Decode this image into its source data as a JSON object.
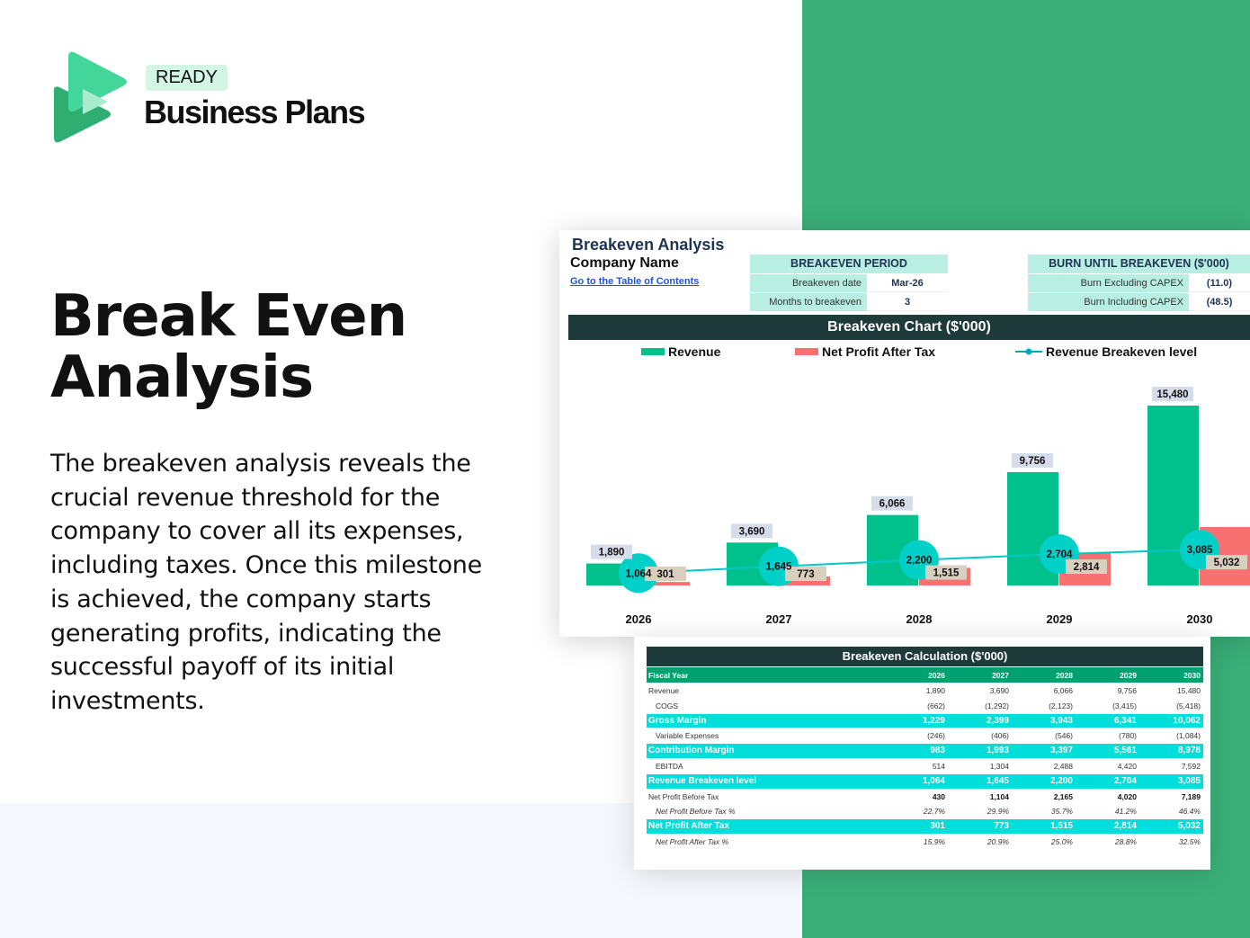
{
  "brand": {
    "badge": "READY",
    "name": "Business Plans"
  },
  "hero": {
    "title_line1": "Break Even",
    "title_line2": "Analysis",
    "description": "The breakeven analysis reveals the crucial revenue threshold for the company to cover all its expenses, including taxes. Once this milestone is achieved, the company starts generating profits, indicating the successful payoff of its initial investments."
  },
  "sheet": {
    "title": "Breakeven Analysis",
    "company": "Company Name",
    "toc_link": "Go to the Table of Contents",
    "period": {
      "header": "BREAKEVEN PERIOD",
      "rows": [
        {
          "label": "Breakeven date",
          "value": "Mar-26"
        },
        {
          "label": "Months to breakeven",
          "value": "3"
        }
      ]
    },
    "burn": {
      "header": "BURN UNTIL BREAKEVEN ($'000)",
      "rows": [
        {
          "label": "Burn Excluding CAPEX",
          "value": "(11.0)"
        },
        {
          "label": "Burn Including CAPEX",
          "value": "(48.5)"
        }
      ]
    }
  },
  "chart_data": {
    "type": "bar",
    "title": "Breakeven Chart ($'000)",
    "categories": [
      "2026",
      "2027",
      "2028",
      "2029",
      "2030"
    ],
    "series": [
      {
        "name": "Revenue",
        "type": "bar",
        "color": "#00c08b",
        "values": [
          1890,
          3690,
          6066,
          9756,
          15480
        ],
        "labels": [
          "1,890",
          "3,690",
          "6,066",
          "9,756",
          "15,480"
        ]
      },
      {
        "name": "Net Profit After Tax",
        "type": "bar",
        "color": "#f87171",
        "values": [
          301,
          773,
          1515,
          2814,
          5032
        ],
        "labels": [
          "301",
          "773",
          "1,515",
          "2,814",
          "5,032"
        ]
      },
      {
        "name": "Revenue Breakeven level",
        "type": "line",
        "color": "#00c8c8",
        "values": [
          1064,
          1645,
          2200,
          2704,
          3085
        ],
        "labels": [
          "1,064",
          "1,645",
          "2,200",
          "2,704",
          "3,085"
        ]
      }
    ],
    "legend": "top",
    "grid": false
  },
  "table": {
    "title": "Breakeven Calculation ($'000)",
    "header": [
      "Fiscal Year",
      "2026",
      "2027",
      "2028",
      "2029",
      "2030"
    ],
    "rows": [
      {
        "style": "plain",
        "cells": [
          "Revenue",
          "1,890",
          "3,690",
          "6,066",
          "9,756",
          "15,480"
        ]
      },
      {
        "style": "ind",
        "cells": [
          "COGS",
          "(662)",
          "(1,292)",
          "(2,123)",
          "(3,415)",
          "(5,418)"
        ]
      },
      {
        "style": "hl",
        "cells": [
          "Gross Margin",
          "1,229",
          "2,399",
          "3,943",
          "6,341",
          "10,062"
        ]
      },
      {
        "style": "ind",
        "cells": [
          "Variable Expenses",
          "(246)",
          "(406)",
          "(546)",
          "(780)",
          "(1,084)"
        ]
      },
      {
        "style": "hl",
        "cells": [
          "Contribution Margin",
          "983",
          "1,993",
          "3,397",
          "5,561",
          "8,978"
        ]
      },
      {
        "style": "ind",
        "cells": [
          "EBITDA",
          "514",
          "1,304",
          "2,488",
          "4,420",
          "7,592"
        ]
      },
      {
        "style": "hl",
        "cells": [
          "Revenue Breakeven level",
          "1,064",
          "1,645",
          "2,200",
          "2,704",
          "3,085"
        ]
      },
      {
        "style": "bd",
        "cells": [
          "Net Profit Before Tax",
          "430",
          "1,104",
          "2,165",
          "4,020",
          "7,189"
        ]
      },
      {
        "style": "it",
        "cells": [
          "Net Profit Before Tax %",
          "22.7%",
          "29.9%",
          "35.7%",
          "41.2%",
          "46.4%"
        ]
      },
      {
        "style": "hl",
        "cells": [
          "Net Profit After Tax",
          "301",
          "773",
          "1,515",
          "2,814",
          "5,032"
        ]
      },
      {
        "style": "it",
        "cells": [
          "Net Profit After Tax %",
          "15.9%",
          "20.9%",
          "25.0%",
          "28.8%",
          "32.5%"
        ]
      }
    ]
  },
  "colors": {
    "green_block": "#3aaf78",
    "dark_header": "#1f3a3a",
    "highlight": "#00dedc"
  }
}
